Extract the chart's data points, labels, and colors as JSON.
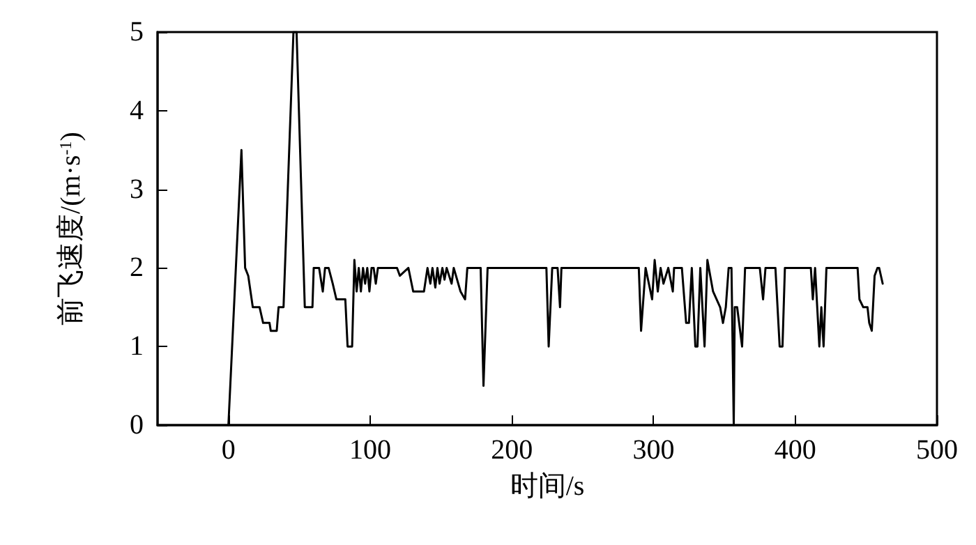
{
  "chart_data": {
    "type": "line",
    "xlabel": "时间/s",
    "ylabel": "前飞速度/(m·s$^{-1}$)",
    "xlim": [
      -50,
      500
    ],
    "xticks": [
      0,
      100,
      200,
      300,
      400,
      500
    ],
    "ylim": [
      0,
      5
    ],
    "yticks": [
      0,
      1,
      2,
      3,
      4,
      5
    ],
    "grid": false,
    "marker": "none",
    "line_style": "solid",
    "series": [
      {
        "color": "#000000",
        "x": [
          0,
          9.2,
          11.8,
          14,
          17.2,
          22,
          24.5,
          29,
          29.9,
          34.1,
          35.4,
          38.9,
          45.9,
          48.1,
          53.9,
          59.3,
          60.2,
          64,
          66.6,
          68.2,
          70.7,
          73.6,
          76.2,
          82.5,
          84.1,
          87.3,
          88.9,
          90.5,
          92,
          93.5,
          95,
          96.5,
          98,
          99.5,
          101,
          102.5,
          104,
          105.5,
          107,
          109.6,
          119,
          121,
          127,
          130.4,
          138,
          140.5,
          142.5,
          144,
          146,
          147.5,
          149,
          151,
          152.5,
          154,
          157.5,
          159,
          163.8,
          167,
          168.6,
          178,
          180,
          182.9,
          224.4,
          226,
          228.5,
          232.3,
          234,
          235,
          289.6,
          291.2,
          294.4,
          299,
          300.8,
          303,
          305,
          307,
          310.4,
          313.6,
          314.5,
          320,
          323,
          325,
          327,
          329.5,
          331,
          333,
          336,
          338,
          342,
          347,
          349,
          351,
          353,
          355,
          356.6,
          357.3,
          359,
          362.5,
          364.6,
          375,
          377.3,
          379,
          386,
          389,
          391,
          392.7,
          411,
          412.4,
          414,
          417,
          418.4,
          420,
          422,
          444,
          445.3,
          448,
          451,
          452.2,
          454,
          456,
          458,
          459.2,
          461.7
        ],
        "values": [
          0,
          3.5,
          2,
          1.9,
          1.5,
          1.5,
          1.3,
          1.3,
          1.2,
          1.2,
          1.5,
          1.5,
          5,
          5,
          1.5,
          1.5,
          2,
          2,
          1.7,
          2,
          2,
          1.8,
          1.6,
          1.6,
          1,
          1,
          2.1,
          1.7,
          2,
          1.7,
          2,
          1.8,
          2,
          1.7,
          2,
          2,
          1.8,
          2,
          2,
          2,
          2,
          1.9,
          2,
          1.7,
          1.7,
          2,
          1.8,
          2,
          1.75,
          2,
          1.8,
          2,
          1.85,
          2,
          1.8,
          2,
          1.7,
          1.6,
          2,
          2,
          0.5,
          2,
          2,
          1,
          2,
          2,
          1.5,
          2,
          2,
          1.2,
          2,
          1.6,
          2.1,
          1.7,
          2,
          1.8,
          2,
          1.7,
          2,
          2,
          1.3,
          1.3,
          2,
          1,
          1,
          2,
          1,
          2.1,
          1.7,
          1.5,
          1.3,
          1.5,
          2,
          2,
          0,
          1.5,
          1.5,
          1,
          2,
          2,
          1.6,
          2,
          2,
          1,
          1,
          2,
          2,
          1.6,
          2,
          1,
          1.5,
          1,
          2,
          2,
          1.6,
          1.5,
          1.5,
          1.3,
          1.2,
          1.9,
          2,
          2,
          1.8
        ]
      }
    ]
  }
}
